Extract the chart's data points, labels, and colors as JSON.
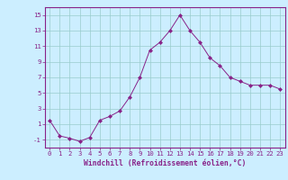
{
  "x": [
    0,
    1,
    2,
    3,
    4,
    5,
    6,
    7,
    8,
    9,
    10,
    11,
    12,
    13,
    14,
    15,
    16,
    17,
    18,
    19,
    20,
    21,
    22,
    23
  ],
  "y": [
    1.5,
    -0.5,
    -0.8,
    -1.2,
    -0.7,
    1.5,
    2.0,
    2.7,
    4.5,
    7.0,
    10.5,
    11.5,
    13.0,
    15.0,
    13.0,
    11.5,
    9.5,
    8.5,
    7.0,
    6.5,
    6.0,
    6.0,
    6.0,
    5.5
  ],
  "line_color": "#882288",
  "marker": "D",
  "marker_size": 2.0,
  "bg_color": "#cceeff",
  "grid_color": "#99cccc",
  "xlabel": "Windchill (Refroidissement éolien,°C)",
  "xlim": [
    -0.5,
    23.5
  ],
  "ylim": [
    -2,
    16
  ],
  "yticks": [
    -1,
    1,
    3,
    5,
    7,
    9,
    11,
    13,
    15
  ],
  "xticks": [
    0,
    1,
    2,
    3,
    4,
    5,
    6,
    7,
    8,
    9,
    10,
    11,
    12,
    13,
    14,
    15,
    16,
    17,
    18,
    19,
    20,
    21,
    22,
    23
  ],
  "tick_color": "#882288",
  "spine_color": "#882288",
  "label_fontsize": 5.8,
  "tick_fontsize": 5.2
}
